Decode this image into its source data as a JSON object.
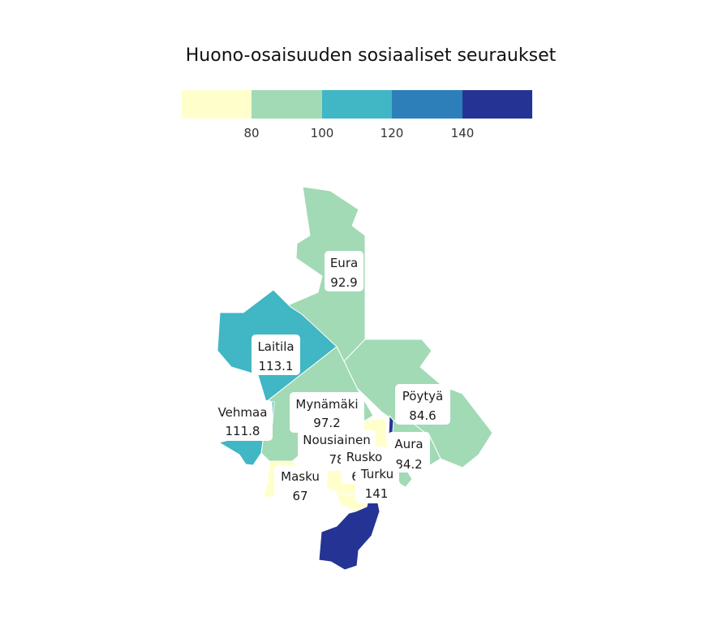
{
  "title": "Huono-osaisuuden sosiaaliset seuraukset",
  "legend": {
    "colors": [
      "#ffffcc",
      "#a1dab4",
      "#41b6c4",
      "#2c7fb8",
      "#253494"
    ],
    "ticks": [
      "80",
      "100",
      "120",
      "140"
    ]
  },
  "regions": [
    {
      "name": "Eura",
      "value": "92.9",
      "color": "#a1dab4"
    },
    {
      "name": "Laitila",
      "value": "113.1",
      "color": "#41b6c4"
    },
    {
      "name": "Vehmaa",
      "value": "111.8",
      "color": "#41b6c4"
    },
    {
      "name": "Mynämäki",
      "value": "97.2",
      "color": "#a1dab4"
    },
    {
      "name": "Pöytyä",
      "value": "84.6",
      "color": "#a1dab4"
    },
    {
      "name": "Nousiainen",
      "value": "78",
      "color": "#ffffcc"
    },
    {
      "name": "Aura",
      "value": "84.2",
      "color": "#a1dab4"
    },
    {
      "name": "Rusko",
      "value": "6",
      "color": "#ffffcc"
    },
    {
      "name": "Masku",
      "value": "67",
      "color": "#ffffcc"
    },
    {
      "name": "Turku",
      "value": "141",
      "color": "#253494"
    }
  ]
}
